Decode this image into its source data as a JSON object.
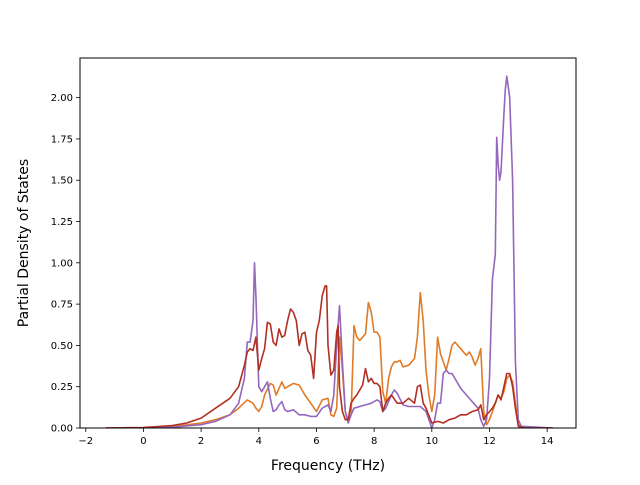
{
  "chart_data": {
    "type": "line",
    "title": "",
    "xlabel": "Frequency (THz)",
    "ylabel": "Partial Density of States",
    "xlim": [
      -2.2,
      15.0
    ],
    "ylim": [
      0.0,
      2.24
    ],
    "xticks": [
      -2,
      0,
      2,
      4,
      6,
      8,
      10,
      12,
      14
    ],
    "xtick_labels": [
      "−2",
      "0",
      "2",
      "4",
      "6",
      "8",
      "10",
      "12",
      "14"
    ],
    "yticks": [
      0.0,
      0.25,
      0.5,
      0.75,
      1.0,
      1.25,
      1.5,
      1.75,
      2.0
    ],
    "ytick_labels": [
      "0.00",
      "0.25",
      "0.50",
      "0.75",
      "1.00",
      "1.25",
      "1.50",
      "1.75",
      "2.00"
    ],
    "grid": false,
    "series": [
      {
        "color": "#e07b27",
        "points": [
          [
            -1.3,
            0
          ],
          [
            0,
            0.002
          ],
          [
            1,
            0.008
          ],
          [
            2,
            0.03
          ],
          [
            2.5,
            0.05
          ],
          [
            3,
            0.08
          ],
          [
            3.3,
            0.12
          ],
          [
            3.6,
            0.17
          ],
          [
            3.8,
            0.15
          ],
          [
            3.9,
            0.12
          ],
          [
            4.0,
            0.1
          ],
          [
            4.1,
            0.13
          ],
          [
            4.2,
            0.2
          ],
          [
            4.4,
            0.27
          ],
          [
            4.5,
            0.26
          ],
          [
            4.6,
            0.2
          ],
          [
            4.8,
            0.28
          ],
          [
            4.9,
            0.24
          ],
          [
            5.0,
            0.25
          ],
          [
            5.2,
            0.27
          ],
          [
            5.4,
            0.26
          ],
          [
            5.6,
            0.2
          ],
          [
            5.8,
            0.15
          ],
          [
            6.0,
            0.1
          ],
          [
            6.2,
            0.17
          ],
          [
            6.4,
            0.18
          ],
          [
            6.5,
            0.08
          ],
          [
            6.6,
            0.07
          ],
          [
            6.7,
            0.12
          ],
          [
            6.8,
            0.55
          ],
          [
            6.9,
            0.35
          ],
          [
            7.0,
            0.1
          ],
          [
            7.1,
            0.04
          ],
          [
            7.2,
            0.08
          ],
          [
            7.3,
            0.62
          ],
          [
            7.4,
            0.55
          ],
          [
            7.5,
            0.53
          ],
          [
            7.6,
            0.55
          ],
          [
            7.7,
            0.57
          ],
          [
            7.8,
            0.76
          ],
          [
            7.9,
            0.7
          ],
          [
            8.0,
            0.58
          ],
          [
            8.1,
            0.58
          ],
          [
            8.2,
            0.55
          ],
          [
            8.3,
            0.22
          ],
          [
            8.4,
            0.15
          ],
          [
            8.5,
            0.3
          ],
          [
            8.6,
            0.37
          ],
          [
            8.7,
            0.4
          ],
          [
            8.8,
            0.4
          ],
          [
            8.9,
            0.41
          ],
          [
            9.0,
            0.37
          ],
          [
            9.2,
            0.38
          ],
          [
            9.4,
            0.42
          ],
          [
            9.5,
            0.55
          ],
          [
            9.6,
            0.82
          ],
          [
            9.7,
            0.65
          ],
          [
            9.8,
            0.35
          ],
          [
            9.9,
            0.2
          ],
          [
            10.0,
            0.1
          ],
          [
            10.1,
            0.2
          ],
          [
            10.2,
            0.55
          ],
          [
            10.3,
            0.45
          ],
          [
            10.4,
            0.4
          ],
          [
            10.5,
            0.35
          ],
          [
            10.6,
            0.42
          ],
          [
            10.7,
            0.5
          ],
          [
            10.8,
            0.52
          ],
          [
            10.9,
            0.5
          ],
          [
            11.0,
            0.48
          ],
          [
            11.1,
            0.46
          ],
          [
            11.2,
            0.44
          ],
          [
            11.3,
            0.46
          ],
          [
            11.4,
            0.43
          ],
          [
            11.5,
            0.38
          ],
          [
            11.6,
            0.42
          ],
          [
            11.7,
            0.48
          ],
          [
            11.8,
            0.1
          ],
          [
            11.9,
            0.02
          ],
          [
            12.0,
            0.05
          ],
          [
            12.1,
            0.1
          ],
          [
            12.2,
            0.15
          ],
          [
            12.3,
            0.2
          ],
          [
            12.4,
            0.18
          ],
          [
            12.5,
            0.22
          ],
          [
            12.6,
            0.3
          ],
          [
            12.7,
            0.32
          ],
          [
            12.8,
            0.28
          ],
          [
            12.9,
            0.15
          ],
          [
            13.0,
            0.02
          ],
          [
            13.2,
            0
          ],
          [
            14.2,
            0
          ]
        ]
      },
      {
        "color": "#9467bd",
        "points": [
          [
            -1.3,
            0
          ],
          [
            0,
            0.001
          ],
          [
            1,
            0.005
          ],
          [
            2,
            0.02
          ],
          [
            2.5,
            0.04
          ],
          [
            3,
            0.08
          ],
          [
            3.3,
            0.15
          ],
          [
            3.5,
            0.3
          ],
          [
            3.6,
            0.52
          ],
          [
            3.7,
            0.52
          ],
          [
            3.8,
            0.65
          ],
          [
            3.85,
            1.0
          ],
          [
            3.9,
            0.8
          ],
          [
            4.0,
            0.25
          ],
          [
            4.1,
            0.22
          ],
          [
            4.2,
            0.25
          ],
          [
            4.3,
            0.28
          ],
          [
            4.4,
            0.18
          ],
          [
            4.5,
            0.1
          ],
          [
            4.6,
            0.11
          ],
          [
            4.7,
            0.14
          ],
          [
            4.8,
            0.16
          ],
          [
            4.9,
            0.11
          ],
          [
            5.0,
            0.1
          ],
          [
            5.2,
            0.11
          ],
          [
            5.4,
            0.08
          ],
          [
            5.6,
            0.08
          ],
          [
            5.8,
            0.07
          ],
          [
            6.0,
            0.07
          ],
          [
            6.2,
            0.12
          ],
          [
            6.4,
            0.14
          ],
          [
            6.5,
            0.1
          ],
          [
            6.6,
            0.2
          ],
          [
            6.7,
            0.5
          ],
          [
            6.8,
            0.74
          ],
          [
            6.9,
            0.4
          ],
          [
            7.0,
            0.1
          ],
          [
            7.1,
            0.03
          ],
          [
            7.2,
            0.08
          ],
          [
            7.3,
            0.12
          ],
          [
            7.5,
            0.13
          ],
          [
            7.7,
            0.14
          ],
          [
            7.9,
            0.15
          ],
          [
            8.0,
            0.16
          ],
          [
            8.1,
            0.17
          ],
          [
            8.2,
            0.16
          ],
          [
            8.3,
            0.1
          ],
          [
            8.4,
            0.12
          ],
          [
            8.6,
            0.2
          ],
          [
            8.7,
            0.23
          ],
          [
            8.8,
            0.21
          ],
          [
            9.0,
            0.14
          ],
          [
            9.2,
            0.13
          ],
          [
            9.4,
            0.13
          ],
          [
            9.6,
            0.13
          ],
          [
            9.8,
            0.1
          ],
          [
            10.0,
            0.0
          ],
          [
            10.1,
            0.05
          ],
          [
            10.2,
            0.15
          ],
          [
            10.3,
            0.15
          ],
          [
            10.4,
            0.33
          ],
          [
            10.5,
            0.35
          ],
          [
            10.6,
            0.33
          ],
          [
            10.7,
            0.33
          ],
          [
            10.8,
            0.3
          ],
          [
            11.0,
            0.24
          ],
          [
            11.2,
            0.2
          ],
          [
            11.4,
            0.16
          ],
          [
            11.6,
            0.12
          ],
          [
            11.7,
            0.05
          ],
          [
            11.8,
            0.01
          ],
          [
            11.9,
            0.05
          ],
          [
            12.0,
            0.3
          ],
          [
            12.1,
            0.9
          ],
          [
            12.2,
            1.05
          ],
          [
            12.25,
            1.76
          ],
          [
            12.3,
            1.6
          ],
          [
            12.35,
            1.5
          ],
          [
            12.4,
            1.55
          ],
          [
            12.5,
            1.9
          ],
          [
            12.55,
            2.05
          ],
          [
            12.6,
            2.13
          ],
          [
            12.7,
            2.0
          ],
          [
            12.8,
            1.5
          ],
          [
            12.9,
            0.4
          ],
          [
            13.0,
            0.05
          ],
          [
            13.1,
            0.01
          ],
          [
            14.2,
            0
          ]
        ]
      },
      {
        "color": "#b22f22",
        "points": [
          [
            -1.3,
            0
          ],
          [
            0,
            0.003
          ],
          [
            1,
            0.015
          ],
          [
            1.5,
            0.03
          ],
          [
            2,
            0.06
          ],
          [
            2.5,
            0.12
          ],
          [
            3,
            0.18
          ],
          [
            3.3,
            0.25
          ],
          [
            3.5,
            0.38
          ],
          [
            3.6,
            0.46
          ],
          [
            3.7,
            0.48
          ],
          [
            3.8,
            0.47
          ],
          [
            3.9,
            0.55
          ],
          [
            4.0,
            0.35
          ],
          [
            4.1,
            0.42
          ],
          [
            4.2,
            0.48
          ],
          [
            4.3,
            0.64
          ],
          [
            4.4,
            0.63
          ],
          [
            4.5,
            0.52
          ],
          [
            4.6,
            0.5
          ],
          [
            4.7,
            0.6
          ],
          [
            4.8,
            0.55
          ],
          [
            4.9,
            0.56
          ],
          [
            5.0,
            0.65
          ],
          [
            5.1,
            0.72
          ],
          [
            5.2,
            0.7
          ],
          [
            5.3,
            0.65
          ],
          [
            5.4,
            0.5
          ],
          [
            5.5,
            0.57
          ],
          [
            5.6,
            0.58
          ],
          [
            5.7,
            0.47
          ],
          [
            5.8,
            0.44
          ],
          [
            5.9,
            0.3
          ],
          [
            6.0,
            0.58
          ],
          [
            6.1,
            0.65
          ],
          [
            6.2,
            0.8
          ],
          [
            6.3,
            0.86
          ],
          [
            6.35,
            0.86
          ],
          [
            6.4,
            0.5
          ],
          [
            6.5,
            0.32
          ],
          [
            6.6,
            0.35
          ],
          [
            6.7,
            0.58
          ],
          [
            6.75,
            0.62
          ],
          [
            6.8,
            0.25
          ],
          [
            6.9,
            0.1
          ],
          [
            7.0,
            0.05
          ],
          [
            7.1,
            0.05
          ],
          [
            7.2,
            0.15
          ],
          [
            7.3,
            0.18
          ],
          [
            7.4,
            0.2
          ],
          [
            7.5,
            0.23
          ],
          [
            7.6,
            0.26
          ],
          [
            7.7,
            0.36
          ],
          [
            7.8,
            0.28
          ],
          [
            7.9,
            0.3
          ],
          [
            8.0,
            0.27
          ],
          [
            8.1,
            0.27
          ],
          [
            8.2,
            0.25
          ],
          [
            8.3,
            0.1
          ],
          [
            8.4,
            0.15
          ],
          [
            8.5,
            0.18
          ],
          [
            8.6,
            0.2
          ],
          [
            8.8,
            0.15
          ],
          [
            9.0,
            0.15
          ],
          [
            9.2,
            0.18
          ],
          [
            9.4,
            0.15
          ],
          [
            9.5,
            0.25
          ],
          [
            9.6,
            0.26
          ],
          [
            9.7,
            0.15
          ],
          [
            9.8,
            0.12
          ],
          [
            10.0,
            0.03
          ],
          [
            10.2,
            0.04
          ],
          [
            10.4,
            0.03
          ],
          [
            10.6,
            0.05
          ],
          [
            10.8,
            0.06
          ],
          [
            11.0,
            0.08
          ],
          [
            11.2,
            0.08
          ],
          [
            11.4,
            0.1
          ],
          [
            11.6,
            0.11
          ],
          [
            11.7,
            0.14
          ],
          [
            11.8,
            0.05
          ],
          [
            11.9,
            0.08
          ],
          [
            12.0,
            0.1
          ],
          [
            12.1,
            0.12
          ],
          [
            12.2,
            0.15
          ],
          [
            12.3,
            0.2
          ],
          [
            12.4,
            0.17
          ],
          [
            12.5,
            0.25
          ],
          [
            12.6,
            0.33
          ],
          [
            12.7,
            0.33
          ],
          [
            12.8,
            0.25
          ],
          [
            12.9,
            0.12
          ],
          [
            13.0,
            0.01
          ],
          [
            13.2,
            0
          ],
          [
            14.2,
            0
          ]
        ]
      }
    ]
  }
}
